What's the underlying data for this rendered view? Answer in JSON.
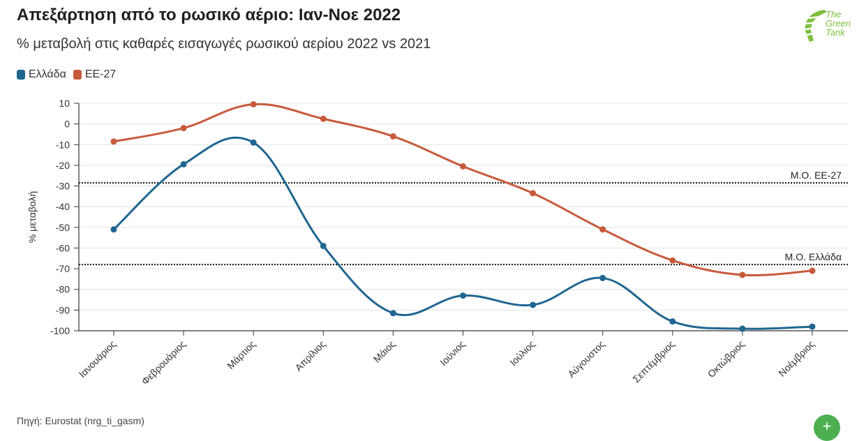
{
  "header": {
    "title": "Απεξάρτηση από το ρωσικό αέριο: Ιαν-Νοε 2022",
    "subtitle": "% μεταβολή στις καθαρές εισαγωγές ρωσικού αερίου 2022 vs 2021"
  },
  "logo": {
    "line1": "The",
    "line2": "Green",
    "line3": "Tank"
  },
  "legend": {
    "items": [
      {
        "label": "Ελλάδα",
        "color": "#1f6691"
      },
      {
        "label": "ΕΕ-27",
        "color": "#c85a3c"
      }
    ]
  },
  "chart_data": {
    "type": "line",
    "categories": [
      "Ιανουάριος",
      "Φεβρουάριος",
      "Μάρτιος",
      "Απρίλιος",
      "Μάιος",
      "Ιούνιος",
      "Ιούλιος",
      "Αύγουστος",
      "Σεπτέμβριος",
      "Οκτώβριος",
      "Νοέμβριος"
    ],
    "series": [
      {
        "name": "Ελλάδα",
        "color": "#1f6691",
        "values": [
          -51,
          -19.5,
          -9,
          -59,
          -91.5,
          -83,
          -87.5,
          -74.5,
          -95.5,
          -99,
          -98
        ]
      },
      {
        "name": "ΕΕ-27",
        "color": "#c85a3c",
        "values": [
          -8.5,
          -2,
          9.5,
          2.5,
          -6,
          -20.5,
          -33.5,
          -51,
          -66,
          -73,
          -71
        ]
      }
    ],
    "reference_lines": [
      {
        "label": "Μ.Ο. ΕΕ-27",
        "value": -28.5
      },
      {
        "label": "Μ.Ο. Ελλάδα",
        "value": -68
      }
    ],
    "ylabel": "% μεταβολή",
    "xlabel": "",
    "ylim": [
      -100,
      10
    ],
    "yticks": [
      10,
      0,
      -10,
      -20,
      -30,
      -40,
      -50,
      -60,
      -70,
      -80,
      -90,
      -100
    ],
    "grid": true,
    "legend_position": "top-left"
  },
  "footer": {
    "source": "Πηγή: Eurostat (nrg_ti_gasm)"
  },
  "fab": {
    "icon": "plus-icon"
  }
}
